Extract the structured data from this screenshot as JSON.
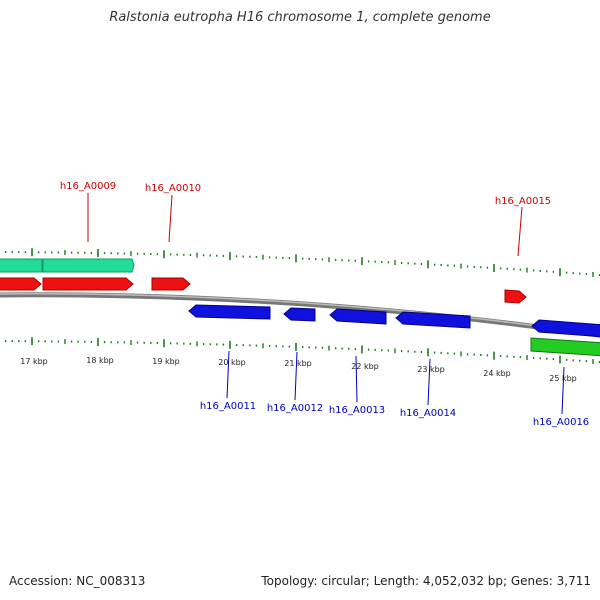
{
  "title": "Ralstonia eutropha H16 chromosome 1, complete genome",
  "footer": {
    "accession": "Accession: NC_008313",
    "summary": "Topology: circular; Length: 4,052,032 bp; Genes: 3,711"
  },
  "colors": {
    "forward_gene": "#ee1111",
    "reverse_gene": "#1111dd",
    "forward_feature": "#22dd99",
    "reverse_feature": "#22cc22",
    "ticks": "#227722",
    "backbone": "#888888",
    "forward_label": "#cc0000",
    "reverse_label": "#0000bb"
  },
  "scale_labels": [
    "17 kbp",
    "18 kbp",
    "19 kbp",
    "20 kbp",
    "21 kbp",
    "22 kbp",
    "23 kbp",
    "24 kbp",
    "25 kbp"
  ],
  "forward_labels": [
    "h16_A0009",
    "h16_A0010",
    "h16_A0015"
  ],
  "reverse_labels": [
    "h16_A0011",
    "h16_A0012",
    "h16_A0013",
    "h16_A0014",
    "h16_A0016"
  ]
}
